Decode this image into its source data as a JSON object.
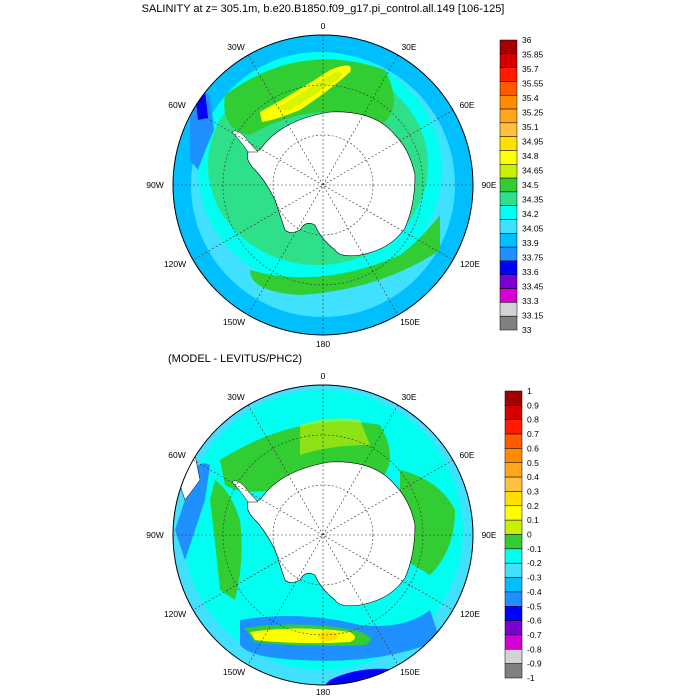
{
  "top_panel": {
    "title": "SALINITY at z= 305.1m, b.e20.B1850.f09_g17.pi_control.all.149 [106-125]",
    "colorbar": {
      "labels": [
        "36",
        "35.85",
        "35.7",
        "35.55",
        "35.4",
        "35.25",
        "35.1",
        "34.95",
        "34.8",
        "34.65",
        "34.5",
        "34.35",
        "34.2",
        "34.05",
        "33.9",
        "33.75",
        "33.6",
        "33.45",
        "33.3",
        "33.15",
        "33"
      ],
      "colors": [
        "#a50000",
        "#d40000",
        "#ff1a00",
        "#ff5a00",
        "#ff8c00",
        "#ffa61a",
        "#ffc040",
        "#ffe000",
        "#ffff00",
        "#c8f000",
        "#32cd32",
        "#2ee08a",
        "#00fff0",
        "#40e0ff",
        "#00bfff",
        "#1e90ff",
        "#0000ff",
        "#7b00d4",
        "#d400d4",
        "#d3d3d3",
        "#808080"
      ]
    }
  },
  "bottom_panel": {
    "title": "(MODEL - LEVITUS/PHC2)",
    "colorbar": {
      "labels": [
        "1",
        "0.9",
        "0.8",
        "0.7",
        "0.6",
        "0.5",
        "0.4",
        "0.3",
        "0.2",
        "0.1",
        "0",
        "-0.1",
        "-0.2",
        "-0.3",
        "-0.4",
        "-0.5",
        "-0.6",
        "-0.7",
        "-0.8",
        "-0.9",
        "-1"
      ],
      "colors": [
        "#a50000",
        "#d40000",
        "#ff1a00",
        "#ff5a00",
        "#ff8c00",
        "#ffa61a",
        "#ffc040",
        "#ffe000",
        "#ffff00",
        "#c8f000",
        "#32cd32",
        "#00fff0",
        "#40e0ff",
        "#00bfff",
        "#1e90ff",
        "#0000ff",
        "#7b00d4",
        "#d400d4",
        "#d3d3d3",
        "#808080"
      ]
    }
  },
  "map_labels": {
    "lon_0": "0",
    "lon_30e": "30E",
    "lon_60e": "60E",
    "lon_90e": "90E",
    "lon_120e": "120E",
    "lon_150e": "150E",
    "lon_180": "180",
    "lon_150w": "150W",
    "lon_120w": "120W",
    "lon_90w": "90W",
    "lon_60w": "60W",
    "lon_30w": "30W"
  }
}
